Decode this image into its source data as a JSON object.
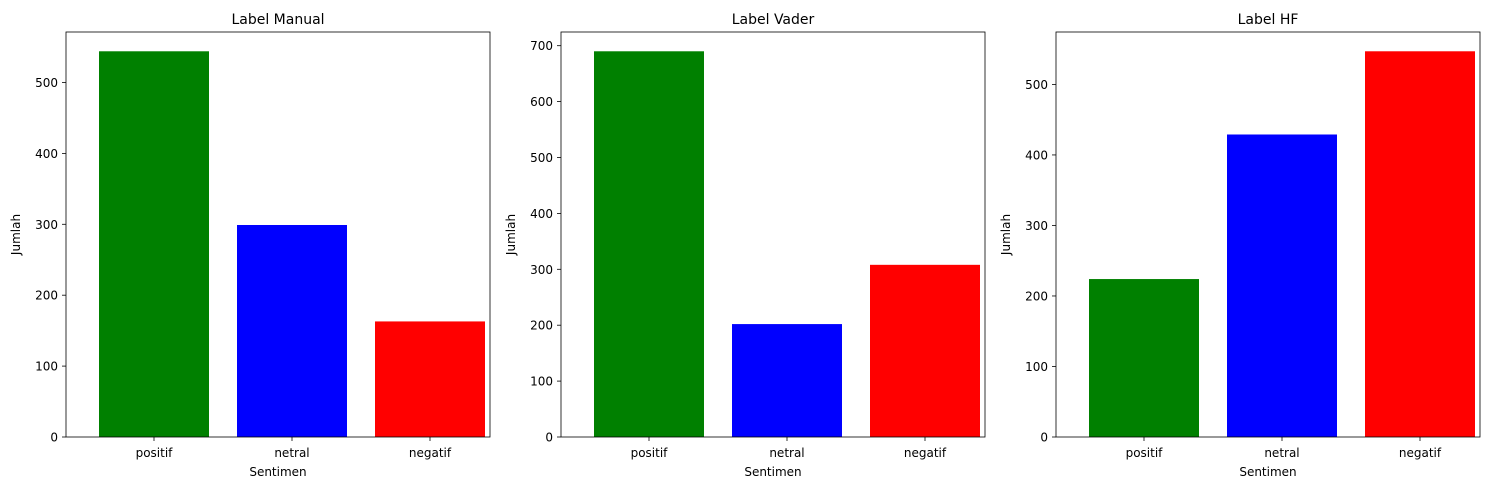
{
  "colors": {
    "positif": "#008000",
    "netral": "#0000ff",
    "negatif": "#ff0000",
    "axes": "#000000",
    "background": "#ffffff"
  },
  "chart_data": [
    {
      "type": "bar",
      "title": "Label Manual",
      "xlabel": "Sentimen",
      "ylabel": "Jumlah",
      "categories": [
        "positif",
        "netral",
        "negatif"
      ],
      "values": [
        544,
        299,
        163
      ],
      "ylim": [
        0,
        571.2
      ],
      "yticks": [
        0,
        100,
        200,
        300,
        400,
        500
      ],
      "ytick_labels": [
        "0",
        "100",
        "200",
        "300",
        "400",
        "500"
      ],
      "grid": false
    },
    {
      "type": "bar",
      "title": "Label Vader",
      "xlabel": "Sentimen",
      "ylabel": "Jumlah",
      "categories": [
        "positif",
        "netral",
        "negatif"
      ],
      "values": [
        690,
        202,
        308
      ],
      "ylim": [
        0,
        724.5
      ],
      "yticks": [
        0,
        100,
        200,
        300,
        400,
        500,
        600,
        700
      ],
      "ytick_labels": [
        "0",
        "100",
        "200",
        "300",
        "400",
        "500",
        "600",
        "700"
      ],
      "grid": false
    },
    {
      "type": "bar",
      "title": "Label HF",
      "xlabel": "Sentimen",
      "ylabel": "Jumlah",
      "categories": [
        "positif",
        "netral",
        "negatif"
      ],
      "values": [
        224,
        429,
        547
      ],
      "ylim": [
        0,
        574.35
      ],
      "yticks": [
        0,
        100,
        200,
        300,
        400,
        500
      ],
      "ytick_labels": [
        "0",
        "100",
        "200",
        "300",
        "400",
        "500"
      ],
      "grid": false
    }
  ]
}
